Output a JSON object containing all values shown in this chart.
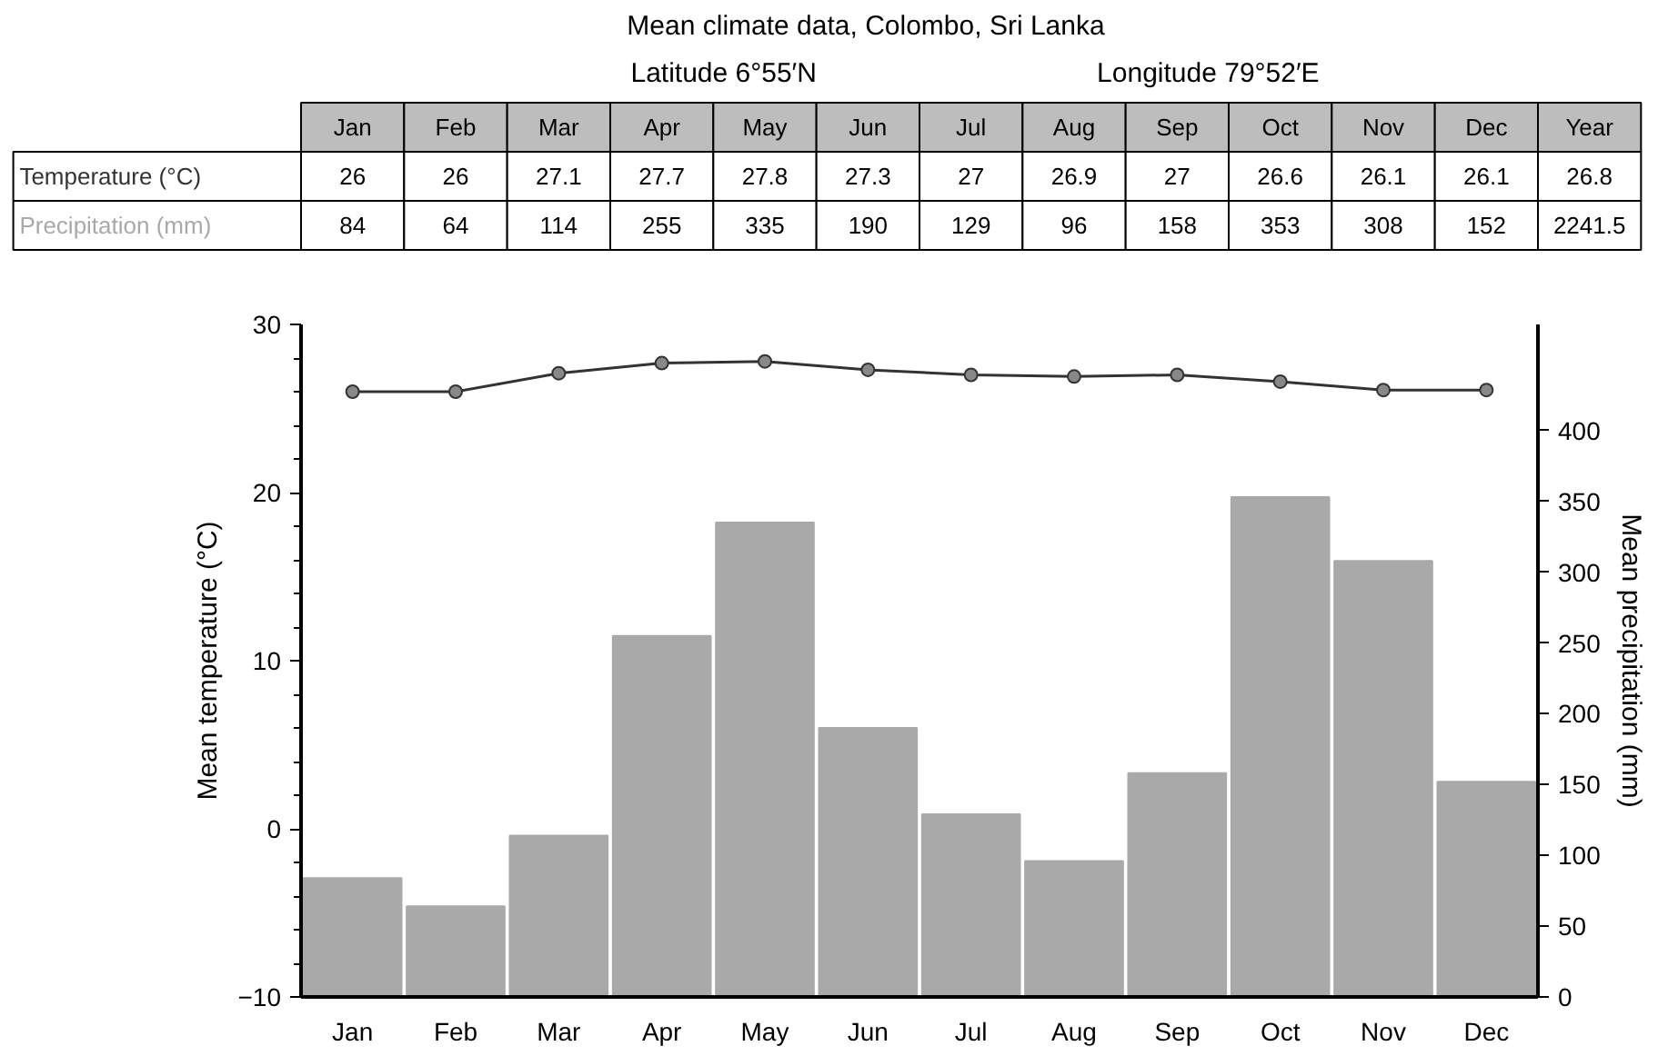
{
  "chart_data": {
    "type": "bar",
    "title": "Mean climate data, Colombo, Sri Lanka",
    "subtitle": "Latitude 6°55′N",
    "annotations": [
      "Longitude 79°52′E",
      "Year",
      "26.8",
      "2241.5"
    ],
    "ylabel": "Mean temperature (°C)",
    "y2label": "Mean precipitation (mm)",
    "categories": [
      "Jan",
      "Feb",
      "Mar",
      "Apr",
      "May",
      "Jun",
      "Jul",
      "Aug",
      "Sep",
      "Oct",
      "Nov",
      "Dec"
    ],
    "series": [
      {
        "name": "Temperature (°C)",
        "type": "line",
        "color": "#333333",
        "values": [
          26,
          26,
          27.1,
          27.7,
          27.8,
          27.3,
          27,
          26.9,
          27,
          26.6,
          26.1,
          26.1
        ]
      },
      {
        "name": "Precipitation (mm)",
        "axis": "y2",
        "color": "#a9a9a9",
        "values": [
          84,
          64,
          114,
          255,
          335,
          190,
          129,
          96,
          158,
          353,
          308,
          152
        ]
      }
    ],
    "ylim": [
      -10,
      30
    ],
    "yticks": [
      -10,
      0,
      10,
      20,
      30
    ],
    "y2lim": [
      0,
      475
    ],
    "y2ticks": [
      0,
      50,
      100,
      150,
      200,
      250,
      300,
      350,
      400
    ],
    "marker": "circle",
    "data_labels": true,
    "grid": false
  }
}
